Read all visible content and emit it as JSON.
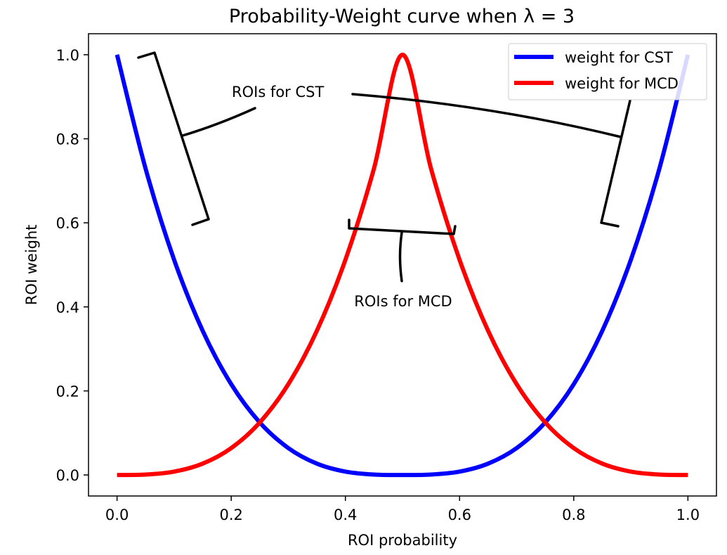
{
  "chart_data": {
    "type": "line",
    "title": "Probability-Weight curve when λ = 3",
    "xlabel": "ROI probability",
    "ylabel": "ROI weight",
    "xlim": [
      -0.05,
      1.05
    ],
    "ylim": [
      -0.05,
      1.05
    ],
    "x_ticks": [
      0.0,
      0.2,
      0.4,
      0.6,
      0.8,
      1.0
    ],
    "x_tick_labels": [
      "0.0",
      "0.2",
      "0.4",
      "0.6",
      "0.8",
      "1.0"
    ],
    "y_ticks": [
      0.0,
      0.2,
      0.4,
      0.6,
      0.8,
      1.0
    ],
    "y_tick_labels": [
      "0.0",
      "0.2",
      "0.4",
      "0.6",
      "0.8",
      "1.0"
    ],
    "grid": false,
    "legend": "top-right",
    "series": [
      {
        "name": "weight for CST",
        "color": "#0000ff",
        "x": [
          0.0,
          0.05,
          0.1,
          0.15,
          0.2,
          0.25,
          0.3,
          0.35,
          0.4,
          0.45,
          0.5,
          0.55,
          0.6,
          0.65,
          0.7,
          0.75,
          0.8,
          0.85,
          0.9,
          0.95,
          1.0
        ],
        "y": [
          1.0,
          0.729,
          0.512,
          0.343,
          0.216,
          0.125,
          0.064,
          0.027,
          0.008,
          0.001,
          0.0,
          0.001,
          0.008,
          0.027,
          0.064,
          0.125,
          0.216,
          0.343,
          0.512,
          0.729,
          1.0
        ]
      },
      {
        "name": "weight for MCD",
        "color": "#ff0000",
        "x": [
          0.0,
          0.05,
          0.1,
          0.15,
          0.2,
          0.25,
          0.3,
          0.35,
          0.4,
          0.45,
          0.5,
          0.55,
          0.6,
          0.65,
          0.7,
          0.75,
          0.8,
          0.85,
          0.9,
          0.95,
          1.0
        ],
        "y": [
          0.0,
          0.001,
          0.008,
          0.027,
          0.064,
          0.125,
          0.216,
          0.343,
          0.512,
          0.729,
          1.0,
          0.729,
          0.512,
          0.343,
          0.216,
          0.125,
          0.064,
          0.027,
          0.008,
          0.001,
          0.0
        ]
      }
    ],
    "annotations": [
      {
        "text": "ROIs for CST"
      },
      {
        "text": "ROIs for MCD"
      }
    ]
  }
}
